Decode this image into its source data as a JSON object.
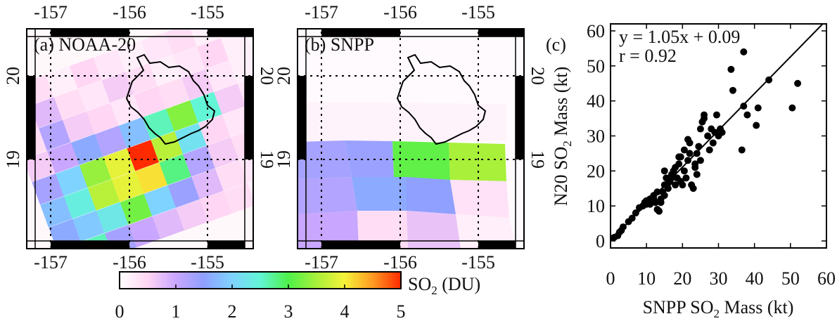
{
  "colors": {
    "frame": "#000000",
    "grid": "#000000",
    "colorbar_stops": [
      "#ffffff",
      "#ffd6f3",
      "#c9a6ff",
      "#8fa0ff",
      "#7fd3ff",
      "#62f5d6",
      "#4ef04a",
      "#a8f03a",
      "#f6f23a",
      "#ff9a22",
      "#ff2a00"
    ]
  },
  "maps": [
    {
      "panel_label": "(a) NOAA-20",
      "lon_ticks": [
        "-157",
        "-156",
        "-155"
      ],
      "lat_ticks": [
        "20",
        "19"
      ]
    },
    {
      "panel_label": "(b) SNPP",
      "lon_ticks": [
        "-157",
        "-156",
        "-155"
      ],
      "lat_ticks": [
        "20",
        "19"
      ]
    }
  ],
  "colorbar": {
    "label": "SO",
    "label_sub": "2",
    "label_unit": " (DU)",
    "ticks": [
      "0",
      "1",
      "2",
      "3",
      "4",
      "5"
    ],
    "range": [
      0,
      5
    ]
  },
  "chart_data": {
    "type": "scatter",
    "panel_label": "(c)",
    "equation": "y = 1.05x +  0.09",
    "r_text": "r = 0.92",
    "xlabel": "SNPP SO",
    "xlabel_sub": "2",
    "xlabel_unit": " Mass (kt)",
    "ylabel": "N20 SO",
    "ylabel_sub": "2",
    "ylabel_unit": " Mass (kt)",
    "xlim": [
      0,
      60
    ],
    "ylim": [
      -2,
      62
    ],
    "xticks": [
      "0",
      "10",
      "20",
      "30",
      "40",
      "50",
      "60"
    ],
    "yticks": [
      "0",
      "10",
      "20",
      "30",
      "40",
      "50",
      "60"
    ],
    "fit": {
      "slope": 1.05,
      "intercept": 0.09
    },
    "points": [
      [
        1,
        1
      ],
      [
        2,
        1.5
      ],
      [
        2.5,
        2.5
      ],
      [
        3,
        3
      ],
      [
        3.5,
        4
      ],
      [
        5,
        5.5
      ],
      [
        6,
        6.5
      ],
      [
        7,
        8
      ],
      [
        8,
        9.5
      ],
      [
        9,
        10
      ],
      [
        9.5,
        11
      ],
      [
        10,
        10.5
      ],
      [
        11,
        12
      ],
      [
        12,
        13
      ],
      [
        12.5,
        11
      ],
      [
        13,
        9
      ],
      [
        13.5,
        8.5
      ],
      [
        14,
        12
      ],
      [
        14.5,
        14
      ],
      [
        15,
        16
      ],
      [
        15.5,
        18
      ],
      [
        16,
        15
      ],
      [
        16.5,
        17
      ],
      [
        17,
        19
      ],
      [
        17.5,
        20
      ],
      [
        18,
        16
      ],
      [
        18.5,
        18
      ],
      [
        19,
        22
      ],
      [
        19,
        24
      ],
      [
        19.5,
        17
      ],
      [
        20,
        16
      ],
      [
        20.5,
        20
      ],
      [
        21,
        18
      ],
      [
        21.5,
        23
      ],
      [
        22,
        25
      ],
      [
        22,
        28
      ],
      [
        22.5,
        16
      ],
      [
        23,
        15
      ],
      [
        23.5,
        21
      ],
      [
        24,
        25
      ],
      [
        24.5,
        27
      ],
      [
        25,
        23
      ],
      [
        25,
        32
      ],
      [
        25.5,
        34
      ],
      [
        26,
        35
      ],
      [
        26,
        36
      ],
      [
        27,
        30
      ],
      [
        27.5,
        26
      ],
      [
        28,
        32
      ],
      [
        28.5,
        28
      ],
      [
        29,
        31
      ],
      [
        29.5,
        36
      ],
      [
        30,
        30
      ],
      [
        30.5,
        32
      ],
      [
        31,
        31
      ],
      [
        19.5,
        24
      ],
      [
        20.5,
        26
      ],
      [
        21.5,
        29
      ],
      [
        23.5,
        22
      ],
      [
        18,
        21
      ],
      [
        17,
        18
      ],
      [
        16,
        16.5
      ],
      [
        15,
        13
      ],
      [
        14,
        11
      ],
      [
        12,
        12
      ],
      [
        11,
        10.5
      ],
      [
        10,
        11.5
      ],
      [
        13,
        14
      ],
      [
        15,
        20
      ],
      [
        24,
        19
      ],
      [
        33.5,
        49
      ],
      [
        34,
        43
      ],
      [
        37,
        54
      ],
      [
        37,
        38.5
      ],
      [
        36.5,
        26
      ],
      [
        38,
        36
      ],
      [
        40.5,
        33
      ],
      [
        41,
        38
      ],
      [
        44,
        46
      ],
      [
        50.5,
        38
      ],
      [
        52,
        45
      ]
    ]
  }
}
